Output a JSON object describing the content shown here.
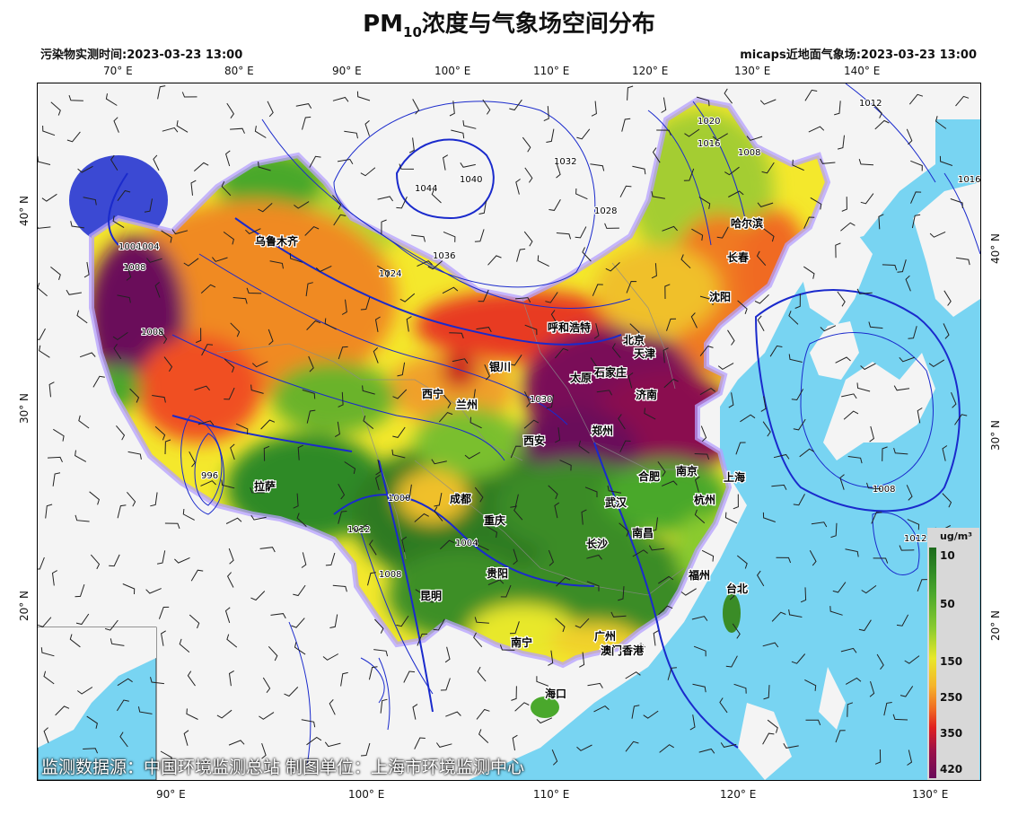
{
  "title": {
    "main": "PM",
    "sub": "10",
    "rest": "浓度与气象场空间分布"
  },
  "header": {
    "left": "污染物实测时间:2023-03-23 13:00",
    "right": "micaps近地面气象场:2023-03-23 13:00"
  },
  "lon_top": [
    "70° E",
    "80° E",
    "90° E",
    "100° E",
    "110° E",
    "120° E",
    "130° E",
    "140° E"
  ],
  "lon_bottom": [
    "90° E",
    "100° E",
    "110° E",
    "120° E",
    "130° E"
  ],
  "lat_left": [
    "40° N",
    "30° N",
    "20° N"
  ],
  "lat_right": [
    "40° N",
    "30° N",
    "20° N"
  ],
  "cities": [
    {
      "name": "乌鲁木齐"
    },
    {
      "name": "哈尔滨"
    },
    {
      "name": "长春"
    },
    {
      "name": "沈阳"
    },
    {
      "name": "呼和浩特"
    },
    {
      "name": "北京"
    },
    {
      "name": "天津"
    },
    {
      "name": "银川"
    },
    {
      "name": "太原"
    },
    {
      "name": "石家庄"
    },
    {
      "name": "西宁"
    },
    {
      "name": "兰州"
    },
    {
      "name": "济南"
    },
    {
      "name": "西安"
    },
    {
      "name": "郑州"
    },
    {
      "name": "拉萨"
    },
    {
      "name": "合肥"
    },
    {
      "name": "南京"
    },
    {
      "name": "上海"
    },
    {
      "name": "成都"
    },
    {
      "name": "武汉"
    },
    {
      "name": "杭州"
    },
    {
      "name": "重庆"
    },
    {
      "name": "南昌"
    },
    {
      "name": "长沙"
    },
    {
      "name": "贵阳"
    },
    {
      "name": "福州"
    },
    {
      "name": "台北"
    },
    {
      "name": "昆明"
    },
    {
      "name": "南宁"
    },
    {
      "name": "广州"
    },
    {
      "name": "澳门"
    },
    {
      "name": "香港"
    },
    {
      "name": "海口"
    }
  ],
  "isobars": [
    "1004",
    "1044",
    "1040",
    "1032",
    "1028",
    "1020",
    "1016",
    "1008",
    "1012",
    "1036",
    "1024",
    "1030",
    "1000",
    "996",
    "1004",
    "1008",
    "1008",
    "1012",
    "1008",
    "1004",
    "1016",
    "1012",
    "1008"
  ],
  "legend": {
    "unit": "ug/m³",
    "levels": [
      "10",
      "50",
      "150",
      "250",
      "350",
      "420"
    ]
  },
  "source": "监测数据源：中国环境监测总站   制图单位：上海市环境监测中心",
  "colors": {
    "ocean": "#78d4f2",
    "land_outside": "#f4f4f4",
    "isobar": "#1a2acc",
    "halo": "#b5a0ff"
  }
}
